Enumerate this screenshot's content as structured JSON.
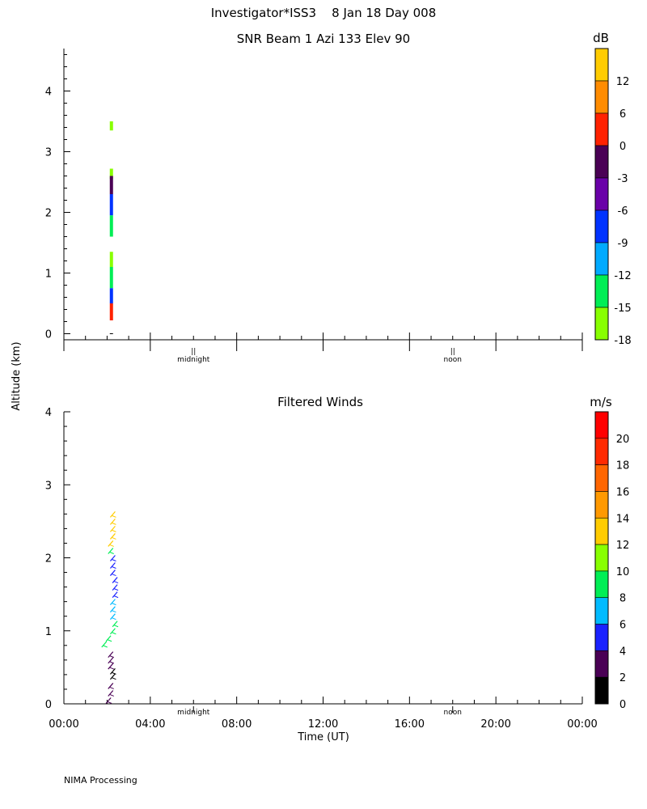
{
  "header": {
    "title": "Investigator*ISS3    8 Jan 18 Day 008"
  },
  "shared": {
    "ylabel": "Altitude (km)",
    "xlabel": "Time (UT)",
    "x_ticks": [
      "00:00",
      "04:00",
      "08:00",
      "12:00",
      "16:00",
      "20:00",
      "00:00"
    ],
    "midnight_label": "midnight",
    "noon_label": "noon",
    "marker_symbol": "||"
  },
  "footer": {
    "text": "NIMA Processing"
  },
  "chart_data": [
    {
      "type": "heatmap",
      "title": "SNR Beam 1 Azi 133 Elev 90",
      "ylabel": "Altitude (km)",
      "xlim": [
        0,
        24
      ],
      "ylim": [
        -0.1,
        4.7
      ],
      "y_ticks": [
        0,
        1,
        2,
        3,
        4
      ],
      "colorbar": {
        "unit": "dB",
        "ticks": [
          "12",
          "6",
          "0",
          "-3",
          "-6",
          "-9",
          "-12",
          "-15",
          "-18"
        ],
        "colors": [
          "#ffcc00",
          "#ff8c00",
          "#ff2200",
          "#4a0055",
          "#6a00a8",
          "#0033ff",
          "#00aaff",
          "#00ee55",
          "#88ff00"
        ]
      },
      "data": [
        {
          "t": 2.2,
          "z0": 3.35,
          "z1": 3.5,
          "color": "#88ff00"
        },
        {
          "t": 2.2,
          "z0": 2.55,
          "z1": 2.72,
          "color": "#88ff00"
        },
        {
          "t": 2.2,
          "z0": 2.3,
          "z1": 2.6,
          "color": "#4a0055"
        },
        {
          "t": 2.2,
          "z0": 1.95,
          "z1": 2.3,
          "color": "#0033ff"
        },
        {
          "t": 2.2,
          "z0": 1.6,
          "z1": 1.95,
          "color": "#00ee55"
        },
        {
          "t": 2.2,
          "z0": 1.1,
          "z1": 1.35,
          "color": "#88ff00"
        },
        {
          "t": 2.2,
          "z0": 0.75,
          "z1": 1.1,
          "color": "#00ee55"
        },
        {
          "t": 2.2,
          "z0": 0.5,
          "z1": 0.75,
          "color": "#0033ff"
        },
        {
          "t": 2.2,
          "z0": 0.22,
          "z1": 0.5,
          "color": "#ff2200"
        }
      ]
    },
    {
      "type": "scatter",
      "title": "Filtered Winds",
      "ylabel": "Altitude (km)",
      "xlabel": "Time (UT)",
      "xlim": [
        0,
        24
      ],
      "ylim": [
        0,
        4
      ],
      "y_ticks": [
        0,
        1,
        2,
        3,
        4
      ],
      "colorbar": {
        "unit": "m/s",
        "ticks": [
          "20",
          "18",
          "16",
          "14",
          "12",
          "10",
          "8",
          "6",
          "4",
          "2",
          "0"
        ],
        "colors": [
          "#ff0000",
          "#ff2a00",
          "#ff6600",
          "#ff9900",
          "#ffcc00",
          "#88ff00",
          "#00ee55",
          "#00bbff",
          "#1a22ff",
          "#4a0055",
          "#000000"
        ]
      },
      "data": [
        {
          "t": 2.3,
          "z": 2.6,
          "speed": 13
        },
        {
          "t": 2.3,
          "z": 2.5,
          "speed": 13
        },
        {
          "t": 2.3,
          "z": 2.4,
          "speed": 12
        },
        {
          "t": 2.3,
          "z": 2.3,
          "speed": 12
        },
        {
          "t": 2.2,
          "z": 2.2,
          "speed": 12
        },
        {
          "t": 2.2,
          "z": 2.1,
          "speed": 8
        },
        {
          "t": 2.3,
          "z": 2.0,
          "speed": 4
        },
        {
          "t": 2.3,
          "z": 1.9,
          "speed": 4
        },
        {
          "t": 2.3,
          "z": 1.8,
          "speed": 4
        },
        {
          "t": 2.4,
          "z": 1.7,
          "speed": 4
        },
        {
          "t": 2.4,
          "z": 1.6,
          "speed": 4
        },
        {
          "t": 2.4,
          "z": 1.5,
          "speed": 5
        },
        {
          "t": 2.3,
          "z": 1.4,
          "speed": 6
        },
        {
          "t": 2.3,
          "z": 1.3,
          "speed": 6
        },
        {
          "t": 2.3,
          "z": 1.2,
          "speed": 7
        },
        {
          "t": 2.4,
          "z": 1.1,
          "speed": 8
        },
        {
          "t": 2.3,
          "z": 1.0,
          "speed": 8
        },
        {
          "t": 2.1,
          "z": 0.9,
          "speed": 8
        },
        {
          "t": 1.9,
          "z": 0.82,
          "speed": 8
        },
        {
          "t": 2.2,
          "z": 0.68,
          "speed": 2
        },
        {
          "t": 2.2,
          "z": 0.6,
          "speed": 2
        },
        {
          "t": 2.2,
          "z": 0.52,
          "speed": 2
        },
        {
          "t": 2.3,
          "z": 0.45,
          "speed": 1
        },
        {
          "t": 2.3,
          "z": 0.38,
          "speed": 1
        },
        {
          "t": 2.2,
          "z": 0.25,
          "speed": 3
        },
        {
          "t": 2.2,
          "z": 0.15,
          "speed": 3
        },
        {
          "t": 2.1,
          "z": 0.05,
          "speed": 3
        }
      ]
    }
  ]
}
